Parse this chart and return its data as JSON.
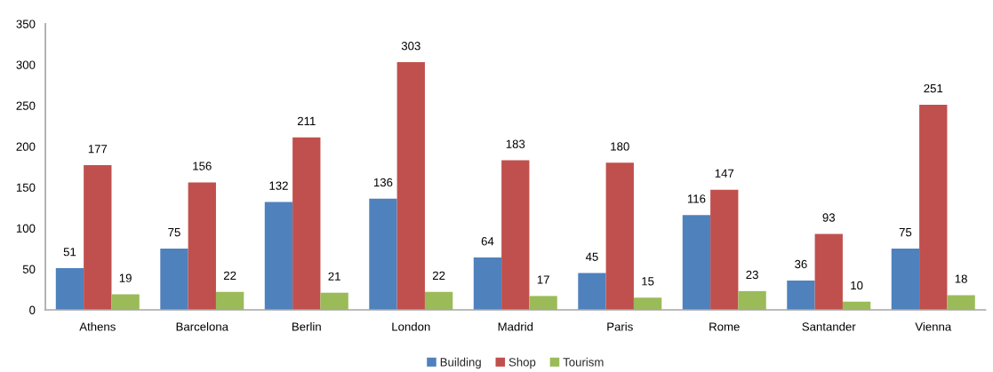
{
  "chart_data": {
    "type": "bar",
    "categories": [
      "Athens",
      "Barcelona",
      "Berlin",
      "London",
      "Madrid",
      "Paris",
      "Rome",
      "Santander",
      "Vienna"
    ],
    "series": [
      {
        "name": "Building",
        "color": "#4f81bd",
        "values": [
          51,
          75,
          132,
          136,
          64,
          45,
          116,
          36,
          75
        ]
      },
      {
        "name": "Shop",
        "color": "#c0504d",
        "values": [
          177,
          156,
          211,
          303,
          183,
          180,
          147,
          93,
          251
        ]
      },
      {
        "name": "Tourism",
        "color": "#9bbb59",
        "values": [
          19,
          22,
          21,
          22,
          17,
          15,
          23,
          10,
          18
        ]
      }
    ],
    "ylim": [
      0,
      350
    ],
    "yticks": [
      0,
      50,
      100,
      150,
      200,
      250,
      300,
      350
    ],
    "data_labels": true,
    "grid": false,
    "legend": "bottom"
  }
}
